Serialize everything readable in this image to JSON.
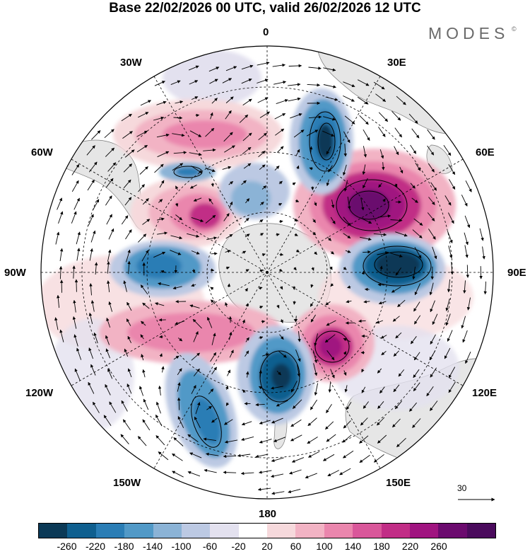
{
  "title": "Base 22/02/2026 00 UTC, valid 26/02/2026 12 UTC",
  "brand": "MODES",
  "brand_mark": "©",
  "map": {
    "projection": "south-polar-stereographic",
    "longitude_labels": [
      "0",
      "30E",
      "60E",
      "90E",
      "120E",
      "150E",
      "180",
      "150W",
      "120W",
      "90W",
      "60W",
      "30W"
    ],
    "ocean_color": "#ffffff",
    "land_color": "#e6e6e6"
  },
  "colorbar": {
    "colors": [
      "#0b3956",
      "#0f5f8f",
      "#2a7db5",
      "#5199c7",
      "#8bb3d6",
      "#bcc9e3",
      "#e3e1ef",
      "#ffffff",
      "#f6d9dc",
      "#f2b3c4",
      "#ea86ad",
      "#d9579a",
      "#c12d86",
      "#a01480",
      "#6b0a6e",
      "#4a0a5c"
    ],
    "tick_labels": [
      "-260",
      "-220",
      "-180",
      "-140",
      "-100",
      "-60",
      "-20",
      "20",
      "60",
      "100",
      "140",
      "180",
      "220",
      "260"
    ]
  },
  "reference_vector": {
    "label": "30"
  }
}
